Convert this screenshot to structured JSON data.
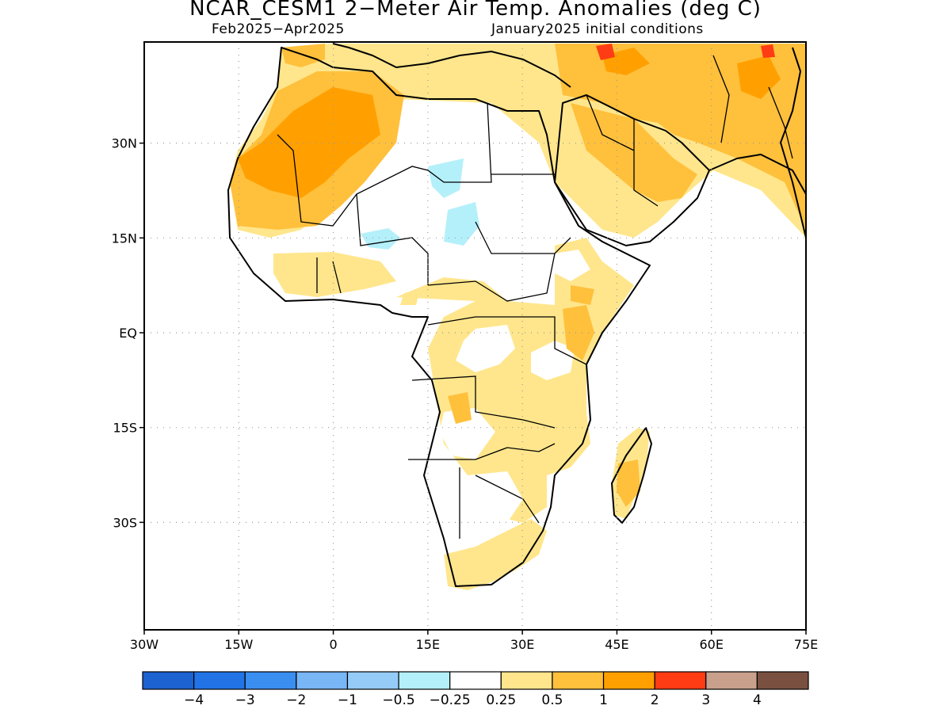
{
  "title": "NCAR_CESM1 2−Meter Air Temp. Anomalies (deg C)",
  "subtitle_left": "Feb2025−Apr2025",
  "subtitle_right": "January2025 initial conditions",
  "map": {
    "lon_range": [
      -30,
      75
    ],
    "lat_range": [
      -47,
      46
    ],
    "lon_ticks": [
      {
        "value": -30,
        "label": "30W"
      },
      {
        "value": -15,
        "label": "15W"
      },
      {
        "value": 0,
        "label": "0"
      },
      {
        "value": 15,
        "label": "15E"
      },
      {
        "value": 30,
        "label": "30E"
      },
      {
        "value": 45,
        "label": "45E"
      },
      {
        "value": 60,
        "label": "60E"
      },
      {
        "value": 75,
        "label": "75E"
      }
    ],
    "lat_ticks": [
      {
        "value": 30,
        "label": "30N"
      },
      {
        "value": 15,
        "label": "15N"
      },
      {
        "value": 0,
        "label": "EQ"
      },
      {
        "value": -15,
        "label": "15S"
      },
      {
        "value": -30,
        "label": "30S"
      }
    ],
    "grid": "dotted"
  },
  "colorbar": {
    "colors": [
      "#1c62d0",
      "#2274e6",
      "#3a8ef0",
      "#78b6f5",
      "#95ccf7",
      "#b4f0fa",
      "#ffffff",
      "#ffe68c",
      "#ffc03c",
      "#ffa000",
      "#ff3c14",
      "#c8a08c",
      "#7a5040"
    ],
    "labels": [
      "−4",
      "−3",
      "−2",
      "−1",
      "−0.5",
      "−0.25",
      "0.25",
      "0.5",
      "1",
      "2",
      "3",
      "4"
    ]
  }
}
